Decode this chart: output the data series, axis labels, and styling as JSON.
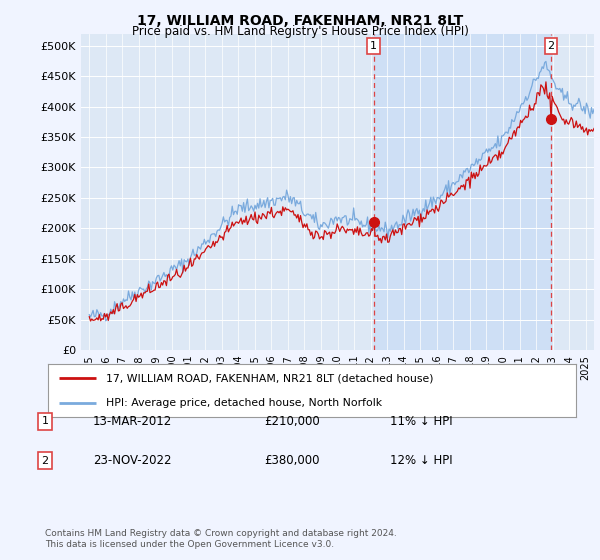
{
  "title": "17, WILLIAM ROAD, FAKENHAM, NR21 8LT",
  "subtitle": "Price paid vs. HM Land Registry's House Price Index (HPI)",
  "background_color": "#f0f4ff",
  "plot_bg_color": "#dde8f5",
  "shaded_color": "#cddff5",
  "hpi_color": "#7aaadd",
  "price_color": "#cc1111",
  "dashed_color": "#dd4444",
  "annotation1_date": "13-MAR-2012",
  "annotation1_price": "£210,000",
  "annotation1_note": "11% ↓ HPI",
  "annotation2_date": "23-NOV-2022",
  "annotation2_price": "£380,000",
  "annotation2_note": "12% ↓ HPI",
  "legend_line1": "17, WILLIAM ROAD, FAKENHAM, NR21 8LT (detached house)",
  "legend_line2": "HPI: Average price, detached house, North Norfolk",
  "footer": "Contains HM Land Registry data © Crown copyright and database right 2024.\nThis data is licensed under the Open Government Licence v3.0.",
  "yticks": [
    0,
    50000,
    100000,
    150000,
    200000,
    250000,
    300000,
    350000,
    400000,
    450000,
    500000
  ],
  "ylim": [
    0,
    520000
  ],
  "sale1_x": 2012.19,
  "sale1_y": 210000,
  "sale2_x": 2022.9,
  "sale2_y": 380000,
  "xlim_left": 1994.5,
  "xlim_right": 2025.5
}
